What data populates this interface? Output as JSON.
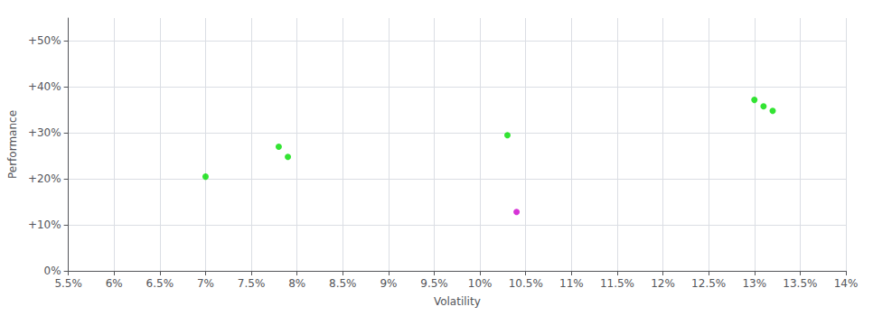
{
  "chart_data": {
    "type": "scatter",
    "xlabel": "Volatility",
    "ylabel": "Performance",
    "xlim": [
      0.055,
      0.14
    ],
    "ylim": [
      0.0,
      0.55
    ],
    "xticks": [
      {
        "value": 0.055,
        "label": "5.5%"
      },
      {
        "value": 0.06,
        "label": "6%"
      },
      {
        "value": 0.065,
        "label": "6.5%"
      },
      {
        "value": 0.07,
        "label": "7%"
      },
      {
        "value": 0.075,
        "label": "7.5%"
      },
      {
        "value": 0.08,
        "label": "8%"
      },
      {
        "value": 0.085,
        "label": "8.5%"
      },
      {
        "value": 0.09,
        "label": "9%"
      },
      {
        "value": 0.095,
        "label": "9.5%"
      },
      {
        "value": 0.1,
        "label": "10%"
      },
      {
        "value": 0.105,
        "label": "10.5%"
      },
      {
        "value": 0.11,
        "label": "11%"
      },
      {
        "value": 0.115,
        "label": "11.5%"
      },
      {
        "value": 0.12,
        "label": "12%"
      },
      {
        "value": 0.125,
        "label": "12.5%"
      },
      {
        "value": 0.13,
        "label": "13%"
      },
      {
        "value": 0.135,
        "label": "13.5%"
      },
      {
        "value": 0.14,
        "label": "14%"
      }
    ],
    "yticks": [
      {
        "value": 0.0,
        "label": "0%"
      },
      {
        "value": 0.1,
        "label": "+10%"
      },
      {
        "value": 0.2,
        "label": "+20%"
      },
      {
        "value": 0.3,
        "label": "+30%"
      },
      {
        "value": 0.4,
        "label": "+40%"
      },
      {
        "value": 0.5,
        "label": "+50%"
      }
    ],
    "series": [
      {
        "color": "#00dd00",
        "values": [
          [
            0.07,
            0.205
          ],
          [
            0.078,
            0.27
          ],
          [
            0.079,
            0.248
          ],
          [
            0.103,
            0.295
          ],
          [
            0.13,
            0.372
          ],
          [
            0.131,
            0.358
          ],
          [
            0.132,
            0.348
          ]
        ]
      },
      {
        "color": "#cc00cc",
        "values": [
          [
            0.104,
            0.128
          ]
        ]
      }
    ],
    "grid": true
  }
}
